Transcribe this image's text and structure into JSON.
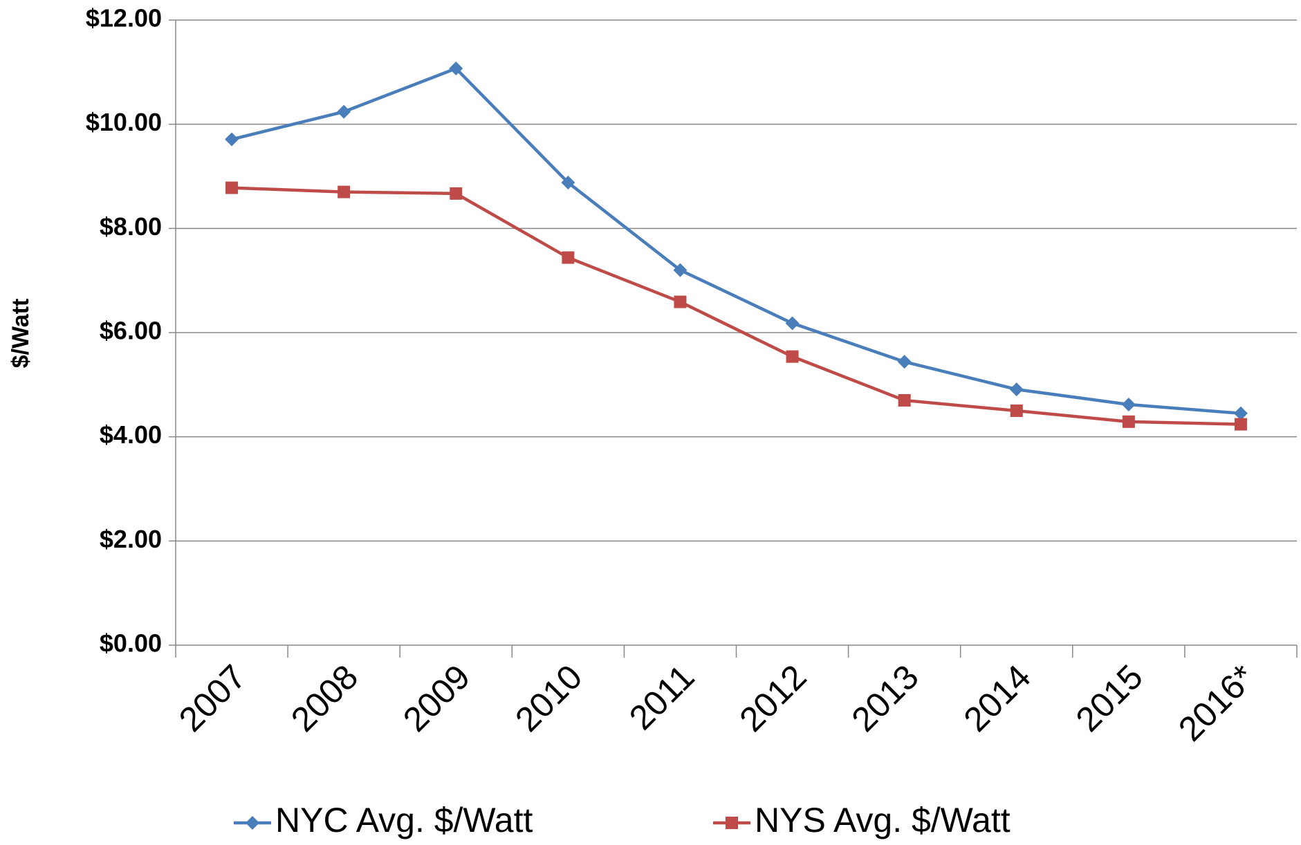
{
  "chart_data": {
    "type": "line",
    "y_label": "$/Watt",
    "categories": [
      "2007",
      "2008",
      "2009",
      "2010",
      "2011",
      "2012",
      "2013",
      "2014",
      "2015",
      "2016*"
    ],
    "series": [
      {
        "name": "NYC Avg. $/Watt",
        "color": "#4a7ebb",
        "marker": "diamond",
        "values": [
          9.71,
          10.24,
          11.07,
          8.88,
          7.2,
          6.18,
          5.44,
          4.91,
          4.62,
          4.45
        ]
      },
      {
        "name": "NYS Avg. $/Watt",
        "color": "#be4b48",
        "marker": "square",
        "values": [
          8.78,
          8.7,
          8.67,
          7.44,
          6.59,
          5.54,
          4.7,
          4.5,
          4.29,
          4.24
        ]
      }
    ],
    "ylim": [
      0,
      12
    ],
    "yticks": [
      {
        "value": 0,
        "label": "$0.00"
      },
      {
        "value": 2,
        "label": "$2.00"
      },
      {
        "value": 4,
        "label": "$4.00"
      },
      {
        "value": 6,
        "label": "$6.00"
      },
      {
        "value": 8,
        "label": "$8.00"
      },
      {
        "value": 10,
        "label": "$10.00"
      },
      {
        "value": 12,
        "label": "$12.00"
      }
    ],
    "grid": true,
    "legend": "bottom"
  }
}
